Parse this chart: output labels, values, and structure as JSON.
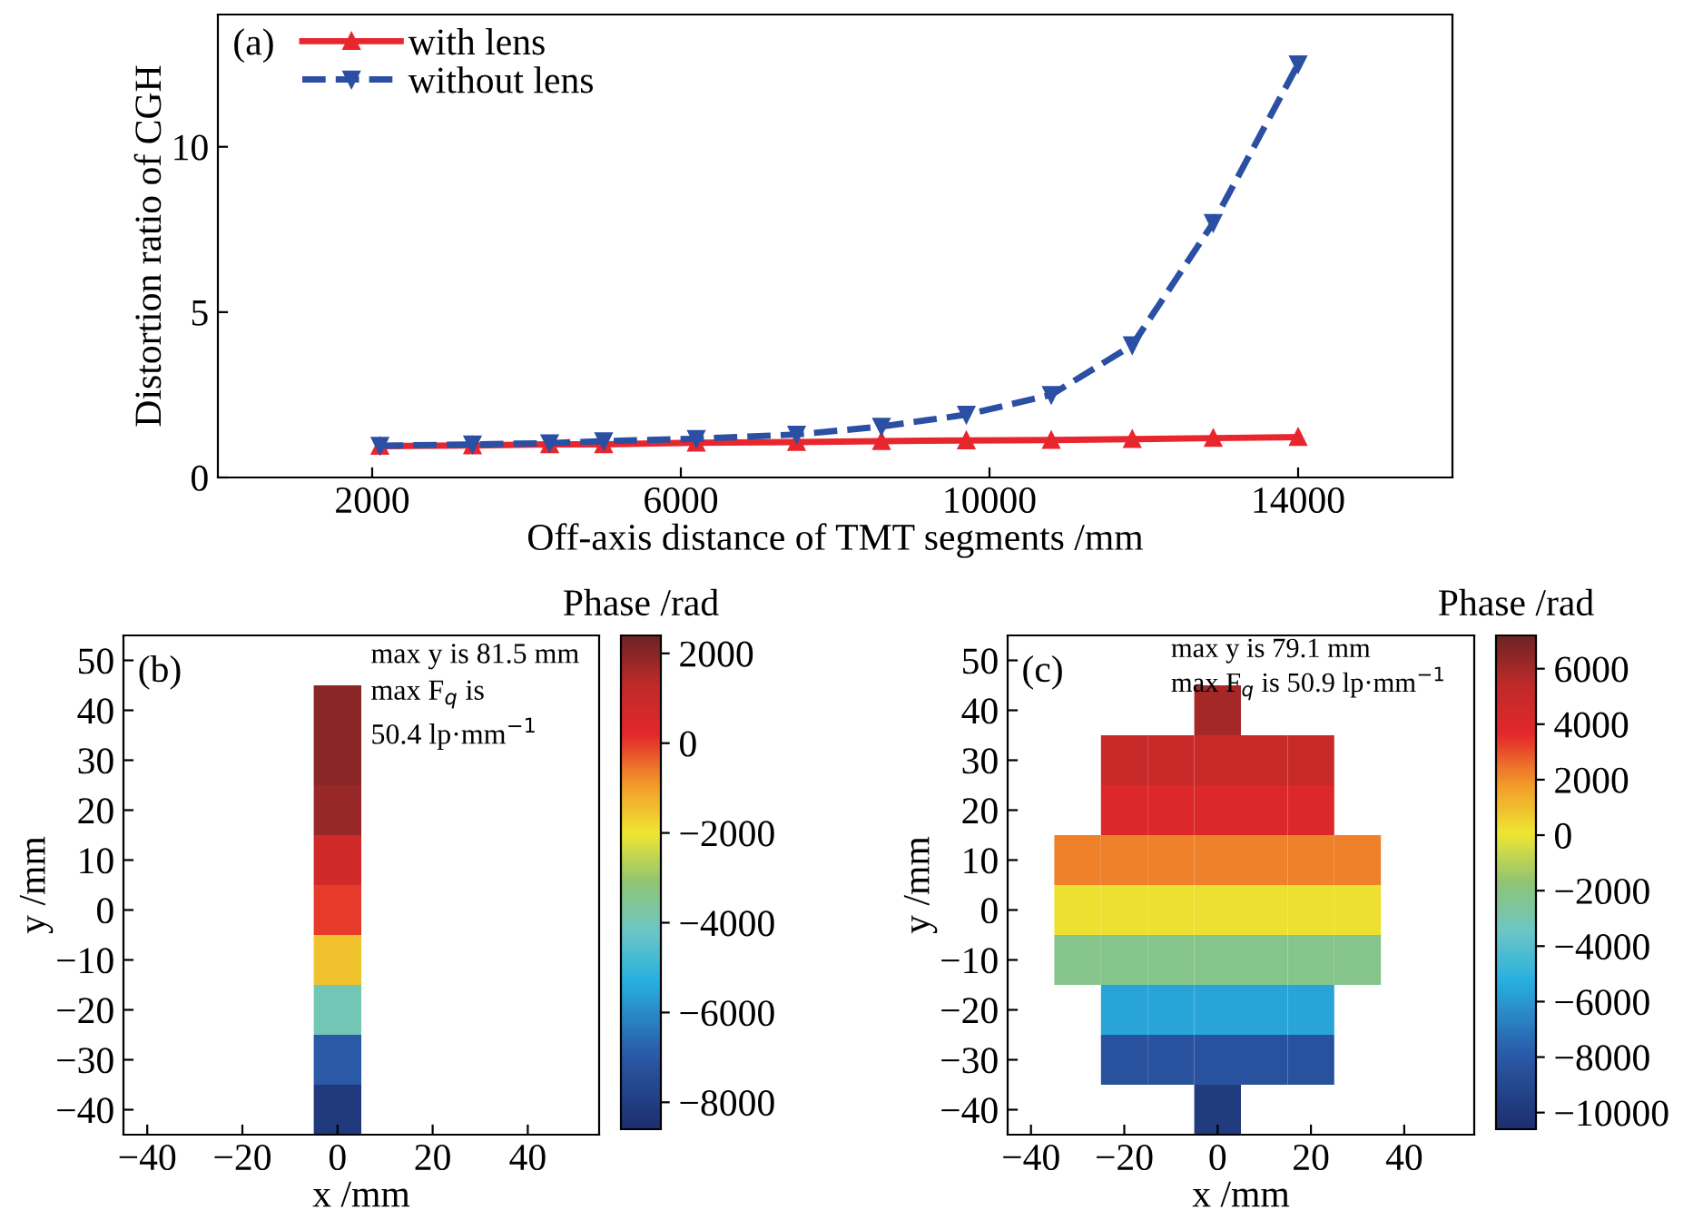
{
  "chart_data": [
    {
      "type": "line",
      "xlabel": "Off-axis distance of TMT segments /mm",
      "ylabel": "Distortion ratio of CGH",
      "annotations": [
        "(a)"
      ],
      "x": [
        2100,
        3300,
        4300,
        5000,
        6200,
        7500,
        8600,
        9700,
        10800,
        11850,
        12900,
        14000
      ],
      "series": [
        {
          "name": "with lens",
          "color": "#e8262d",
          "line_style": "solid",
          "marker": "triangle",
          "values": [
            0.95,
            0.97,
            1.0,
            1.0,
            1.05,
            1.07,
            1.1,
            1.12,
            1.13,
            1.16,
            1.19,
            1.22
          ]
        },
        {
          "name": "without lens",
          "color": "#2a4fa3",
          "line_style": "dashed",
          "marker": "triangle_down",
          "values": [
            0.96,
            1.0,
            1.04,
            1.1,
            1.17,
            1.3,
            1.54,
            1.9,
            2.5,
            4.0,
            7.7,
            12.5
          ]
        }
      ],
      "xlim": [
        0,
        16000
      ],
      "xticks": [
        2000,
        6000,
        10000,
        14000
      ],
      "ylim": [
        0,
        14
      ],
      "yticks": [
        0,
        5,
        10
      ],
      "legend": "top left",
      "grid": false
    },
    {
      "type": "heatmap",
      "xlabel": "x /mm",
      "ylabel": "y /mm",
      "clabel": "Phase /rad",
      "annotations": [
        "(b)",
        "max y is 81.5 mm",
        "max F$_{q}$ is",
        "50.4 lp·mm$^{−1}$"
      ],
      "categories": [
        "−40",
        null,
        "−20",
        null,
        "0",
        null,
        "20",
        null,
        "40",
        null
      ],
      "y_categories": [
        "50",
        "40",
        "30",
        "20",
        "10",
        "0",
        "−10",
        "−20",
        "−30",
        "−40"
      ],
      "clim": [
        -8600,
        2400
      ],
      "cticks": [
        -8000,
        -6000,
        -4000,
        -2000,
        0,
        2000
      ],
      "cells": [
        [
          null,
          null,
          null,
          null,
          null,
          null,
          null,
          null,
          null,
          null
        ],
        [
          null,
          null,
          null,
          null,
          2000,
          null,
          null,
          null,
          null,
          null
        ],
        [
          null,
          null,
          null,
          null,
          2000,
          null,
          null,
          null,
          null,
          null
        ],
        [
          null,
          null,
          null,
          null,
          1800,
          null,
          null,
          null,
          null,
          null
        ],
        [
          null,
          null,
          null,
          null,
          800,
          null,
          null,
          null,
          null,
          null
        ],
        [
          null,
          null,
          null,
          null,
          0,
          null,
          null,
          null,
          null,
          null
        ],
        [
          null,
          null,
          null,
          null,
          -1500,
          null,
          null,
          null,
          null,
          null
        ],
        [
          null,
          null,
          null,
          null,
          -4000,
          null,
          null,
          null,
          null,
          null
        ],
        [
          null,
          null,
          null,
          null,
          -7000,
          null,
          null,
          null,
          null,
          null
        ],
        [
          null,
          null,
          null,
          null,
          -8200,
          null,
          null,
          null,
          null,
          null
        ]
      ]
    },
    {
      "type": "heatmap",
      "xlabel": "x /mm",
      "ylabel": "y /mm",
      "clabel": "Phase /rad",
      "annotations": [
        "(c)",
        "max y is 79.1 mm",
        "max F$_{q}$ is 50.9 lp·mm$^{−1}$"
      ],
      "categories": [
        "−40",
        null,
        "−20",
        null,
        "0",
        null,
        "20",
        null,
        "40",
        null
      ],
      "y_categories": [
        "50",
        "40",
        "30",
        "20",
        "10",
        "0",
        "−10",
        "−20",
        "−30",
        "−40"
      ],
      "clim": [
        -10600,
        7200
      ],
      "cticks": [
        -10000,
        -8000,
        -6000,
        -4000,
        -2000,
        0,
        2000,
        4000,
        6000
      ],
      "cells": [
        [
          null,
          null,
          null,
          null,
          null,
          null,
          null,
          null,
          null,
          null
        ],
        [
          null,
          null,
          null,
          null,
          6000,
          null,
          null,
          null,
          null,
          null
        ],
        [
          null,
          null,
          5000,
          5000,
          5000,
          5000,
          5000,
          null,
          null,
          null
        ],
        [
          null,
          null,
          4000,
          4000,
          4000,
          4000,
          4000,
          null,
          null,
          null
        ],
        [
          null,
          2200,
          2200,
          2200,
          2200,
          2200,
          2200,
          2200,
          null,
          null
        ],
        [
          null,
          200,
          200,
          200,
          200,
          200,
          200,
          200,
          null,
          null
        ],
        [
          null,
          -2200,
          -2200,
          -2200,
          -2200,
          -2200,
          -2200,
          -2200,
          null,
          null
        ],
        [
          null,
          null,
          -5600,
          -5600,
          -5600,
          -5600,
          -5600,
          null,
          null,
          null
        ],
        [
          null,
          null,
          -8400,
          -8400,
          -8400,
          -8400,
          -8400,
          null,
          null,
          null
        ],
        [
          null,
          null,
          null,
          null,
          -9800,
          null,
          null,
          null,
          null,
          null
        ]
      ]
    }
  ]
}
